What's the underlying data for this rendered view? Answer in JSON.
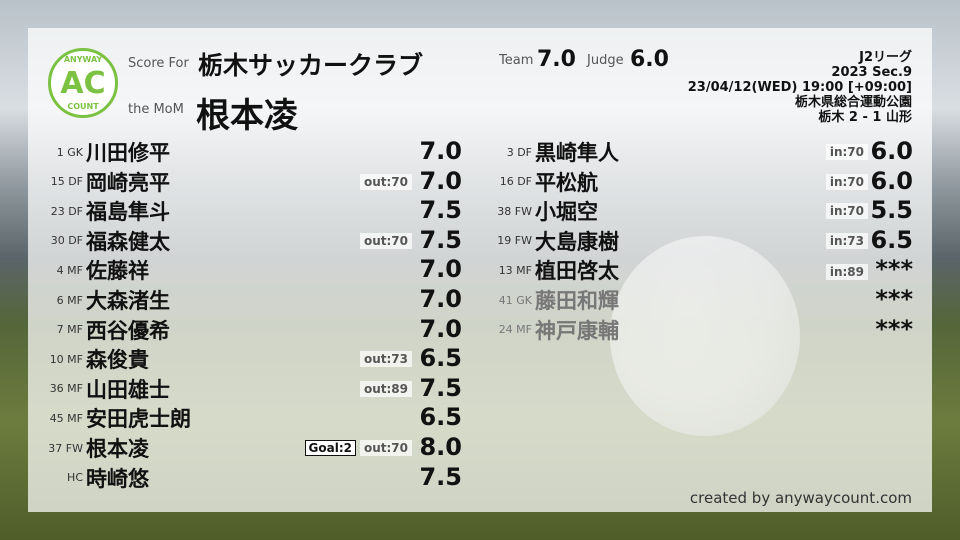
{
  "header": {
    "score_for_label": "Score For",
    "team_name": "栃木サッカークラブ",
    "mom_label": "the MoM",
    "mom_name": "根本凌",
    "team_label": "Team",
    "team_score": "7.0",
    "judge_label": "Judge",
    "judge_score": "6.0"
  },
  "logo": {
    "top": "ANYWAY",
    "mid": "AC",
    "bottom": "COUNT"
  },
  "match": {
    "league": "J2リーグ",
    "section": "2023 Sec.9",
    "datetime": "23/04/12(WED) 19:00 [+09:00]",
    "venue": "栃木県総合運動公園",
    "result": "栃木 2 - 1 山形"
  },
  "starters": [
    {
      "num": "1 GK",
      "name": "川田修平",
      "sub": "",
      "goal": "",
      "score": "7.0"
    },
    {
      "num": "15 DF",
      "name": "岡崎亮平",
      "sub": "out:70",
      "goal": "",
      "score": "7.0"
    },
    {
      "num": "23 DF",
      "name": "福島隼斗",
      "sub": "",
      "goal": "",
      "score": "7.5"
    },
    {
      "num": "30 DF",
      "name": "福森健太",
      "sub": "out:70",
      "goal": "",
      "score": "7.5"
    },
    {
      "num": "4 MF",
      "name": "佐藤祥",
      "sub": "",
      "goal": "",
      "score": "7.0"
    },
    {
      "num": "6 MF",
      "name": "大森渚生",
      "sub": "",
      "goal": "",
      "score": "7.0"
    },
    {
      "num": "7 MF",
      "name": "西谷優希",
      "sub": "",
      "goal": "",
      "score": "7.0"
    },
    {
      "num": "10 MF",
      "name": "森俊貴",
      "sub": "out:73",
      "goal": "",
      "score": "6.5"
    },
    {
      "num": "36 MF",
      "name": "山田雄士",
      "sub": "out:89",
      "goal": "",
      "score": "7.5"
    },
    {
      "num": "45 MF",
      "name": "安田虎士朗",
      "sub": "",
      "goal": "",
      "score": "6.5"
    },
    {
      "num": "37 FW",
      "name": "根本凌",
      "sub": "out:70",
      "goal": "Goal:2",
      "score": "8.0"
    },
    {
      "num": "HC",
      "name": "時崎悠",
      "sub": "",
      "goal": "",
      "score": "7.5"
    }
  ],
  "subs": [
    {
      "num": "3 DF",
      "name": "黒崎隼人",
      "sub": "in:70",
      "score": "6.0"
    },
    {
      "num": "16 DF",
      "name": "平松航",
      "sub": "in:70",
      "score": "6.0"
    },
    {
      "num": "38 FW",
      "name": "小堀空",
      "sub": "in:70",
      "score": "5.5"
    },
    {
      "num": "19 FW",
      "name": "大島康樹",
      "sub": "in:73",
      "score": "6.5"
    },
    {
      "num": "13 MF",
      "name": "植田啓太",
      "sub": "in:89",
      "score": "***"
    },
    {
      "num": "41 GK",
      "name": "藤田和輝",
      "sub": "",
      "score": "***"
    },
    {
      "num": "24 MF",
      "name": "神戸康輔",
      "sub": "",
      "score": "***"
    }
  ],
  "footer": {
    "credit": "created by anywaycount.com"
  },
  "colors": {
    "logo_green": "#7cc242"
  }
}
